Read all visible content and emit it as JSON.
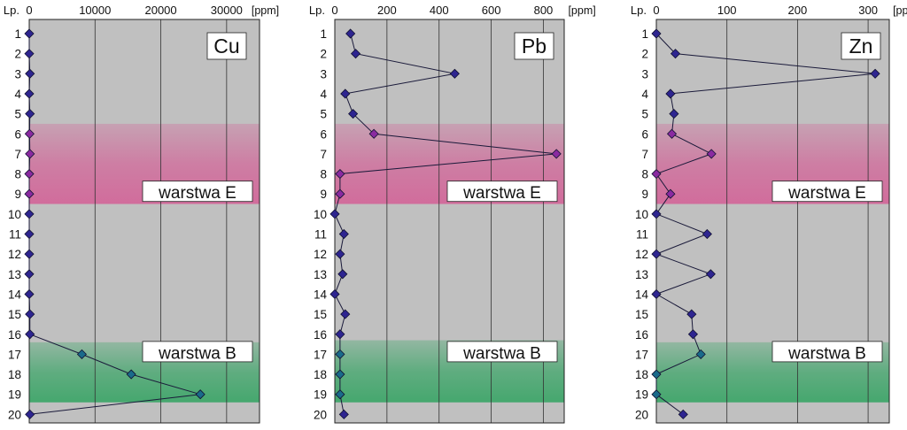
{
  "chart_data": [
    {
      "type": "line",
      "title": "Cu",
      "unit": "[ppm]",
      "ylabel": "Lp.",
      "x_ticks": [
        0,
        10000,
        20000,
        30000
      ],
      "xlim": [
        0,
        35000
      ],
      "y_ticks": [
        1,
        2,
        3,
        4,
        5,
        6,
        7,
        8,
        9,
        10,
        11,
        12,
        13,
        14,
        15,
        16,
        17,
        18,
        19,
        20
      ],
      "y": [
        1,
        2,
        3,
        4,
        5,
        6,
        7,
        8,
        9,
        10,
        11,
        12,
        13,
        14,
        15,
        16,
        17,
        18,
        19,
        20
      ],
      "x": [
        0,
        0,
        100,
        0,
        100,
        50,
        100,
        0,
        0,
        0,
        0,
        0,
        0,
        0,
        100,
        100,
        8000,
        15500,
        26000,
        100
      ],
      "bands": [
        {
          "label": "warstwa E",
          "from": 5.5,
          "to": 9.5,
          "color": "#d2689a"
        },
        {
          "label": "warstwa B",
          "from": 16.4,
          "to": 19.4,
          "color": "#3fa66a"
        }
      ]
    },
    {
      "type": "line",
      "title": "Pb",
      "unit": "[ppm]",
      "ylabel": "Lp.",
      "x_ticks": [
        0,
        200,
        400,
        600,
        800
      ],
      "xlim": [
        0,
        880
      ],
      "y_ticks": [
        1,
        2,
        3,
        4,
        5,
        6,
        7,
        8,
        9,
        10,
        11,
        12,
        13,
        14,
        15,
        16,
        17,
        18,
        19,
        20
      ],
      "y": [
        1,
        2,
        3,
        4,
        5,
        6,
        7,
        8,
        9,
        10,
        11,
        12,
        13,
        14,
        15,
        16,
        17,
        18,
        19,
        20
      ],
      "x": [
        60,
        80,
        460,
        40,
        70,
        150,
        850,
        20,
        20,
        0,
        35,
        20,
        30,
        0,
        40,
        20,
        20,
        20,
        20,
        35
      ],
      "bands": [
        {
          "label": "warstwa E",
          "from": 5.5,
          "to": 9.5,
          "color": "#d2689a"
        },
        {
          "label": "warstwa B",
          "from": 16.3,
          "to": 19.4,
          "color": "#3fa66a"
        }
      ]
    },
    {
      "type": "line",
      "title": "Zn",
      "unit": "[ppm]",
      "ylabel": "Lp.",
      "x_ticks": [
        0,
        100,
        200,
        300
      ],
      "xlim": [
        0,
        330
      ],
      "y_ticks": [
        1,
        2,
        3,
        4,
        5,
        6,
        7,
        8,
        9,
        10,
        11,
        12,
        13,
        14,
        15,
        16,
        17,
        18,
        19,
        20
      ],
      "y": [
        1,
        2,
        3,
        4,
        5,
        6,
        7,
        8,
        9,
        10,
        11,
        12,
        13,
        14,
        15,
        16,
        17,
        18,
        19,
        20
      ],
      "x": [
        0,
        27,
        310,
        20,
        25,
        22,
        78,
        0,
        20,
        0,
        72,
        0,
        77,
        0,
        50,
        52,
        63,
        0,
        0,
        38
      ],
      "bands": [
        {
          "label": "warstwa E",
          "from": 5.5,
          "to": 9.5,
          "color": "#d2689a"
        },
        {
          "label": "warstwa B",
          "from": 16.4,
          "to": 19.4,
          "color": "#3fa66a"
        }
      ]
    }
  ]
}
